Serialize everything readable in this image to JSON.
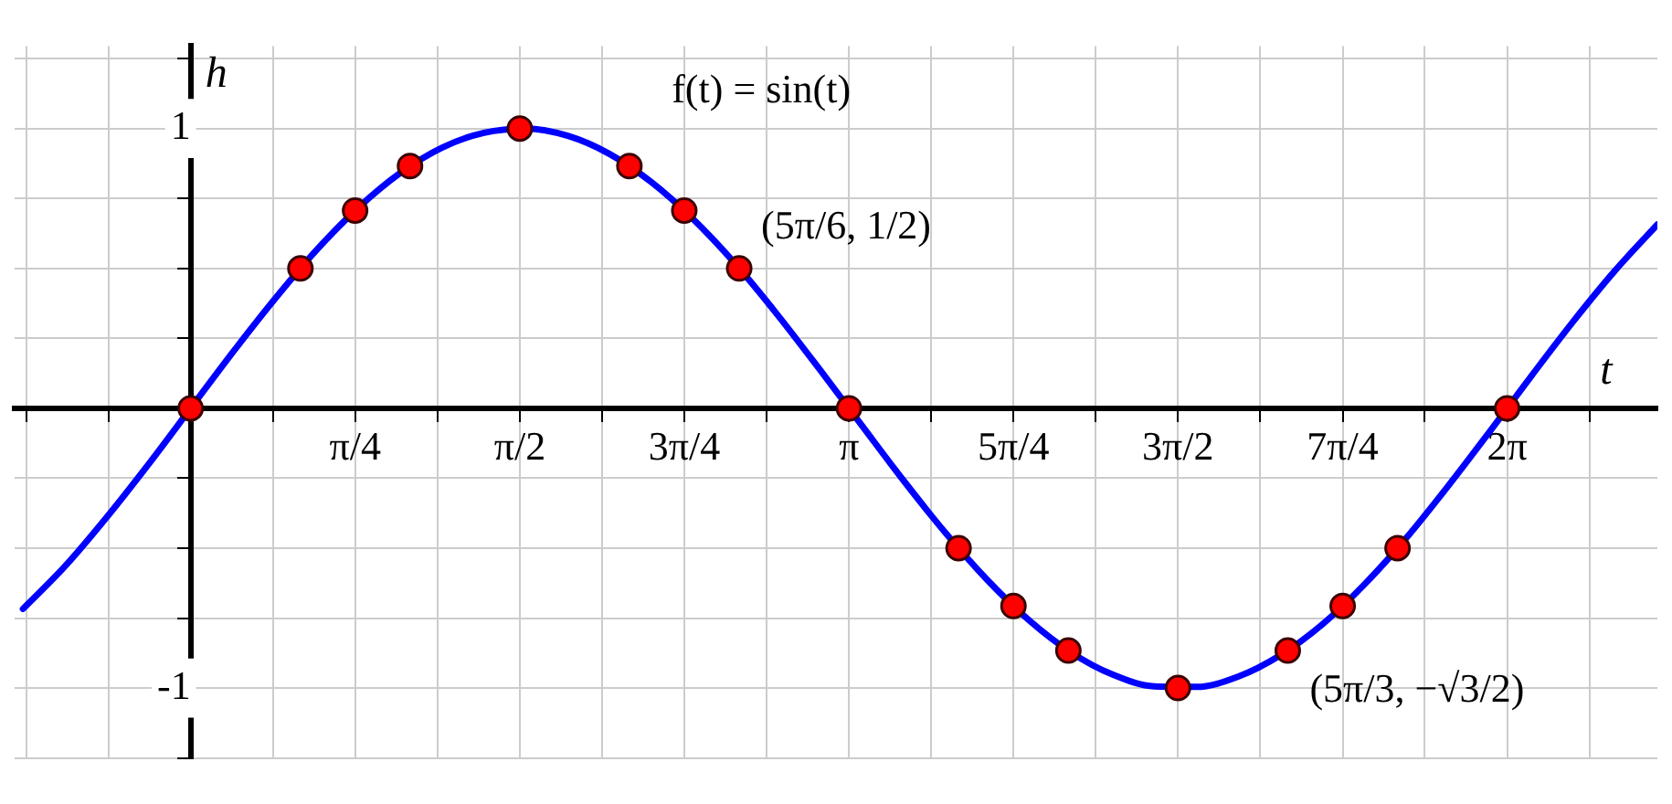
{
  "chart_data": {
    "type": "line",
    "xlabel": "t",
    "ylabel": "h",
    "xlim": [
      -0.84,
      7.0
    ],
    "ylim": [
      -1.25,
      1.295
    ],
    "xticks": [
      {
        "value": -0.785,
        "label": null
      },
      {
        "value": -0.393,
        "label": null
      },
      {
        "value": 0,
        "label": null
      },
      {
        "value": 0.393,
        "label": null
      },
      {
        "value": 0.785,
        "label": "π/4"
      },
      {
        "value": 1.178,
        "label": null
      },
      {
        "value": 1.571,
        "label": "π/2"
      },
      {
        "value": 1.963,
        "label": null
      },
      {
        "value": 2.356,
        "label": "3π/4"
      },
      {
        "value": 2.749,
        "label": null
      },
      {
        "value": 3.142,
        "label": "π"
      },
      {
        "value": 3.534,
        "label": null
      },
      {
        "value": 3.927,
        "label": "5π/4"
      },
      {
        "value": 4.32,
        "label": null
      },
      {
        "value": 4.712,
        "label": "3π/2"
      },
      {
        "value": 5.105,
        "label": null
      },
      {
        "value": 5.498,
        "label": "7π/4"
      },
      {
        "value": 5.89,
        "label": null
      },
      {
        "value": 6.283,
        "label": "2π"
      },
      {
        "value": 6.676,
        "label": null
      }
    ],
    "yticks": [
      {
        "value": -1.25,
        "label": null
      },
      -1,
      {
        "value": -0.75,
        "label": null
      },
      {
        "value": -0.5,
        "label": null
      },
      {
        "value": -0.25,
        "label": null
      },
      {
        "value": 0,
        "label": null
      },
      {
        "value": 0.25,
        "label": null
      },
      {
        "value": 0.5,
        "label": null
      },
      {
        "value": 0.75,
        "label": null
      },
      1,
      {
        "value": 1.25,
        "label": null
      }
    ],
    "grid": true,
    "annotations": [
      "f(t) = sin(t)",
      {
        "text": "(5π/6, 1/2)",
        "x": 2.618,
        "y": 0.5
      },
      {
        "text": "(5π/3, −√3/2)",
        "x": 5.236,
        "y": -0.866
      }
    ],
    "series": [
      {
        "color": "#0000ff",
        "marker": "none",
        "line_style": "solid",
        "x": [
          -0.8,
          -0.6,
          -0.4,
          -0.2,
          0,
          0.2,
          0.4,
          0.6,
          0.8,
          1.0,
          1.2,
          1.4,
          1.6,
          1.8,
          2.0,
          2.2,
          2.4,
          2.6,
          2.8,
          3.0,
          3.2,
          3.4,
          3.6,
          3.8,
          4.0,
          4.2,
          4.4,
          4.6,
          4.8,
          5.0,
          5.2,
          5.4,
          5.6,
          5.8,
          6.0,
          6.2,
          6.4,
          6.6,
          6.8,
          7.0
        ],
        "values": [
          -0.717,
          -0.565,
          -0.389,
          -0.199,
          0,
          0.199,
          0.389,
          0.565,
          0.717,
          0.841,
          0.932,
          0.985,
          1.0,
          0.974,
          0.909,
          0.808,
          0.675,
          0.516,
          0.335,
          0.141,
          -0.058,
          -0.256,
          -0.443,
          -0.612,
          -0.757,
          -0.872,
          -0.952,
          -0.994,
          -0.996,
          -0.959,
          -0.883,
          -0.773,
          -0.631,
          -0.465,
          -0.279,
          -0.083,
          0.117,
          0.312,
          0.494,
          0.657
        ]
      },
      {
        "type": "scatter",
        "color": "#ff0000",
        "marker": "circle",
        "x": [
          0,
          0.524,
          0.785,
          1.047,
          1.571,
          2.094,
          2.356,
          2.618,
          3.142,
          3.665,
          3.927,
          4.189,
          4.712,
          5.236,
          5.498,
          5.76,
          6.283
        ],
        "values": [
          0,
          0.5,
          0.707,
          0.866,
          1,
          0.866,
          0.707,
          0.5,
          0,
          -0.5,
          -0.707,
          -0.866,
          -1,
          -0.866,
          -0.707,
          -0.5,
          0
        ]
      }
    ]
  }
}
